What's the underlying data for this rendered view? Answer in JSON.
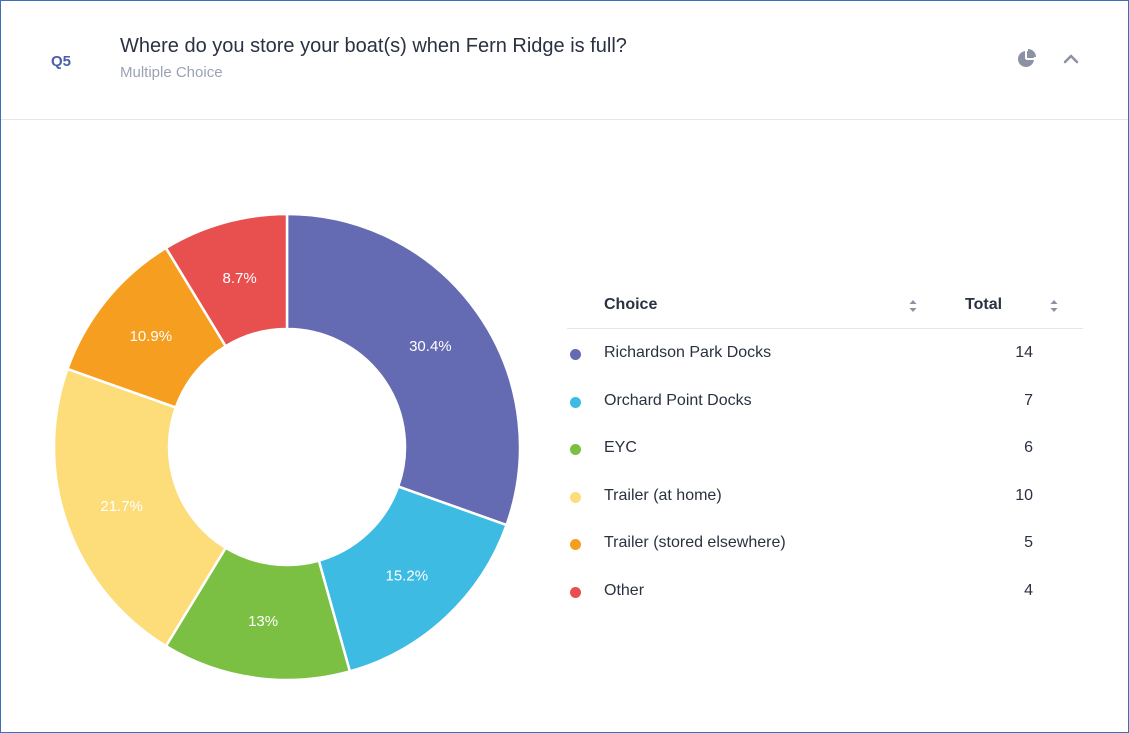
{
  "question": {
    "number": "Q5",
    "title": "Where do you store your boat(s) when Fern Ridge is full?",
    "type": "Multiple Choice"
  },
  "icons": {
    "chart_toggle": "pie-chart-icon",
    "collapse": "chevron-up-icon"
  },
  "table": {
    "header_choice": "Choice",
    "header_total": "Total",
    "rows": [
      {
        "label": "Richardson Park Docks",
        "total": "14",
        "color": "#646bb2"
      },
      {
        "label": "Orchard Point Docks",
        "total": "7",
        "color": "#3dbbe3"
      },
      {
        "label": "EYC",
        "total": "6",
        "color": "#7bc043"
      },
      {
        "label": "Trailer (at home)",
        "total": "10",
        "color": "#fddc7a"
      },
      {
        "label": "Trailer (stored elsewhere)",
        "total": "5",
        "color": "#f59e1f"
      },
      {
        "label": "Other",
        "total": "4",
        "color": "#e84f4f"
      }
    ]
  },
  "chart_data": {
    "type": "pie",
    "donut": true,
    "categories": [
      "Richardson Park Docks",
      "Orchard Point Docks",
      "EYC",
      "Trailer (at home)",
      "Trailer (stored elsewhere)",
      "Other"
    ],
    "values": [
      14,
      7,
      6,
      10,
      5,
      4
    ],
    "labels": [
      "30.4%",
      "15.2%",
      "13%",
      "21.7%",
      "10.9%",
      "8.7%"
    ],
    "colors": [
      "#646bb2",
      "#3dbbe3",
      "#7bc043",
      "#fddc7a",
      "#f59e1f",
      "#e84f4f"
    ]
  }
}
